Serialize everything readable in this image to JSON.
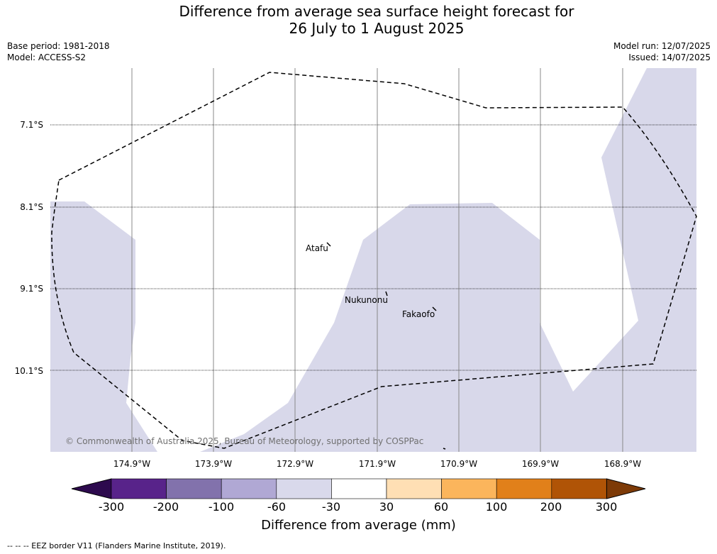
{
  "header": {
    "title_line1": "Difference from average sea surface height forecast for",
    "title_line2": "26 July to 1 August 2025",
    "base_period": "Base period: 1981-2018",
    "model": "Model: ACCESS-S2",
    "model_run": "Model run: 12/07/2025",
    "issued": "Issued: 14/07/2025"
  },
  "map": {
    "lon_labels": [
      "174.9°W",
      "173.9°W",
      "172.9°W",
      "171.9°W",
      "170.9°W",
      "169.9°W",
      "168.9°W"
    ],
    "lat_labels": [
      "7.1°S",
      "8.1°S",
      "9.1°S",
      "10.1°S"
    ],
    "places": [
      "Atafu",
      "Nukunonu",
      "Fakaofo"
    ],
    "copyright": "© Commonwealth of Australia 2025, Bureau of Meteorology, supported by COSPPac",
    "shading_color": "#d8d8ea",
    "eez_color": "#000000"
  },
  "colorbar": {
    "labels": [
      "-300",
      "-200",
      "-100",
      "-60",
      "-30",
      "30",
      "60",
      "100",
      "200",
      "300"
    ],
    "colors": [
      "#2d0a4e",
      "#58238a",
      "#8272ac",
      "#b0a8d4",
      "#d9d9eb",
      "#ffffff",
      "#ffdfb4",
      "#fbb55c",
      "#e1801a",
      "#b05406",
      "#7d3a07"
    ],
    "title": "Difference from average (mm)"
  },
  "footer": {
    "eez_note": "--  --  -- EEZ border V11 (Flanders Marine Institute, 2019)."
  }
}
